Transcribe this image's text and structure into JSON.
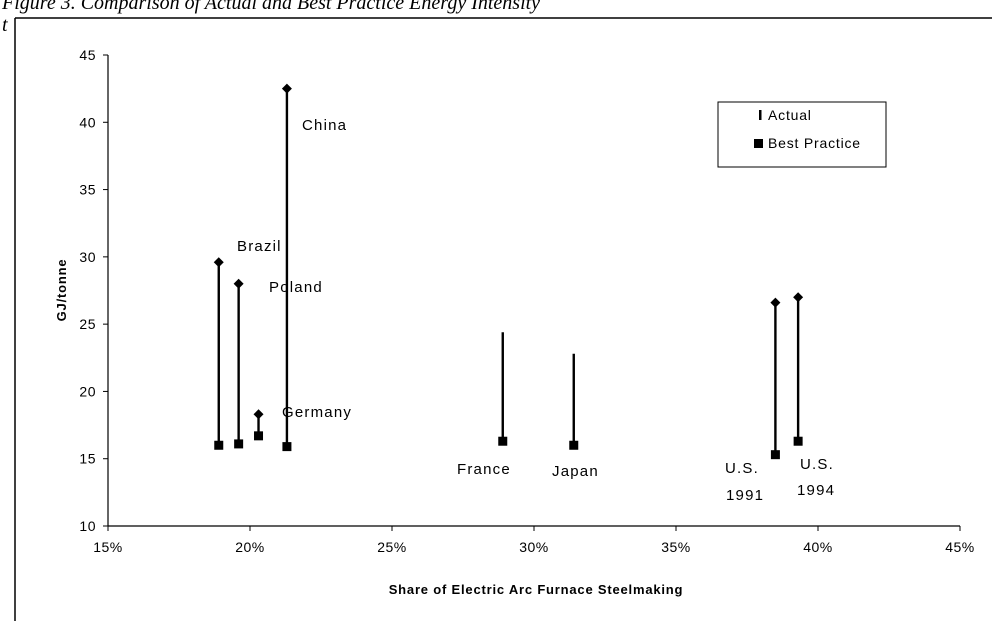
{
  "caption": {
    "line1": "Figure 3. Comparison of Actual and Best Practice Energy Intensity",
    "line2": "t"
  },
  "chart_data": {
    "type": "scatter",
    "title": "",
    "xlabel": "Share of Electric Arc Furnace Steelmaking",
    "ylabel": "GJ/tonne",
    "xlim": [
      0.15,
      0.45
    ],
    "ylim": [
      10,
      45
    ],
    "x_ticks": [
      "15%",
      "20%",
      "25%",
      "30%",
      "35%",
      "40%",
      "45%"
    ],
    "y_ticks": [
      "10",
      "15",
      "20",
      "25",
      "30",
      "35",
      "40",
      "45"
    ],
    "grid": false,
    "legend_position": "top-right",
    "series": [
      {
        "name": "Actual",
        "marker": "diamond"
      },
      {
        "name": "Best Practice",
        "marker": "square"
      }
    ],
    "countries": [
      {
        "label": "Brazil",
        "x": 0.189,
        "actual": 29.6,
        "best": 16.0
      },
      {
        "label": "Poland",
        "x": 0.196,
        "actual": 28.0,
        "best": 16.1
      },
      {
        "label": "",
        "x": 0.203,
        "actual": 18.3,
        "best": 16.7
      },
      {
        "label": "China",
        "x": 0.213,
        "actual": 42.5,
        "best": 15.9
      },
      {
        "label": "Germany",
        "x": null,
        "actual": null,
        "best": null
      },
      {
        "label": "France",
        "x": 0.289,
        "actual": 24.4,
        "best": 16.3
      },
      {
        "label": "Japan",
        "x": 0.314,
        "actual": 22.8,
        "best": 16.0
      },
      {
        "label": "U.S. 1991",
        "x": 0.385,
        "actual": 26.6,
        "best": 15.3
      },
      {
        "label": "U.S. 1994",
        "x": 0.393,
        "actual": 27.0,
        "best": 16.3
      }
    ]
  }
}
